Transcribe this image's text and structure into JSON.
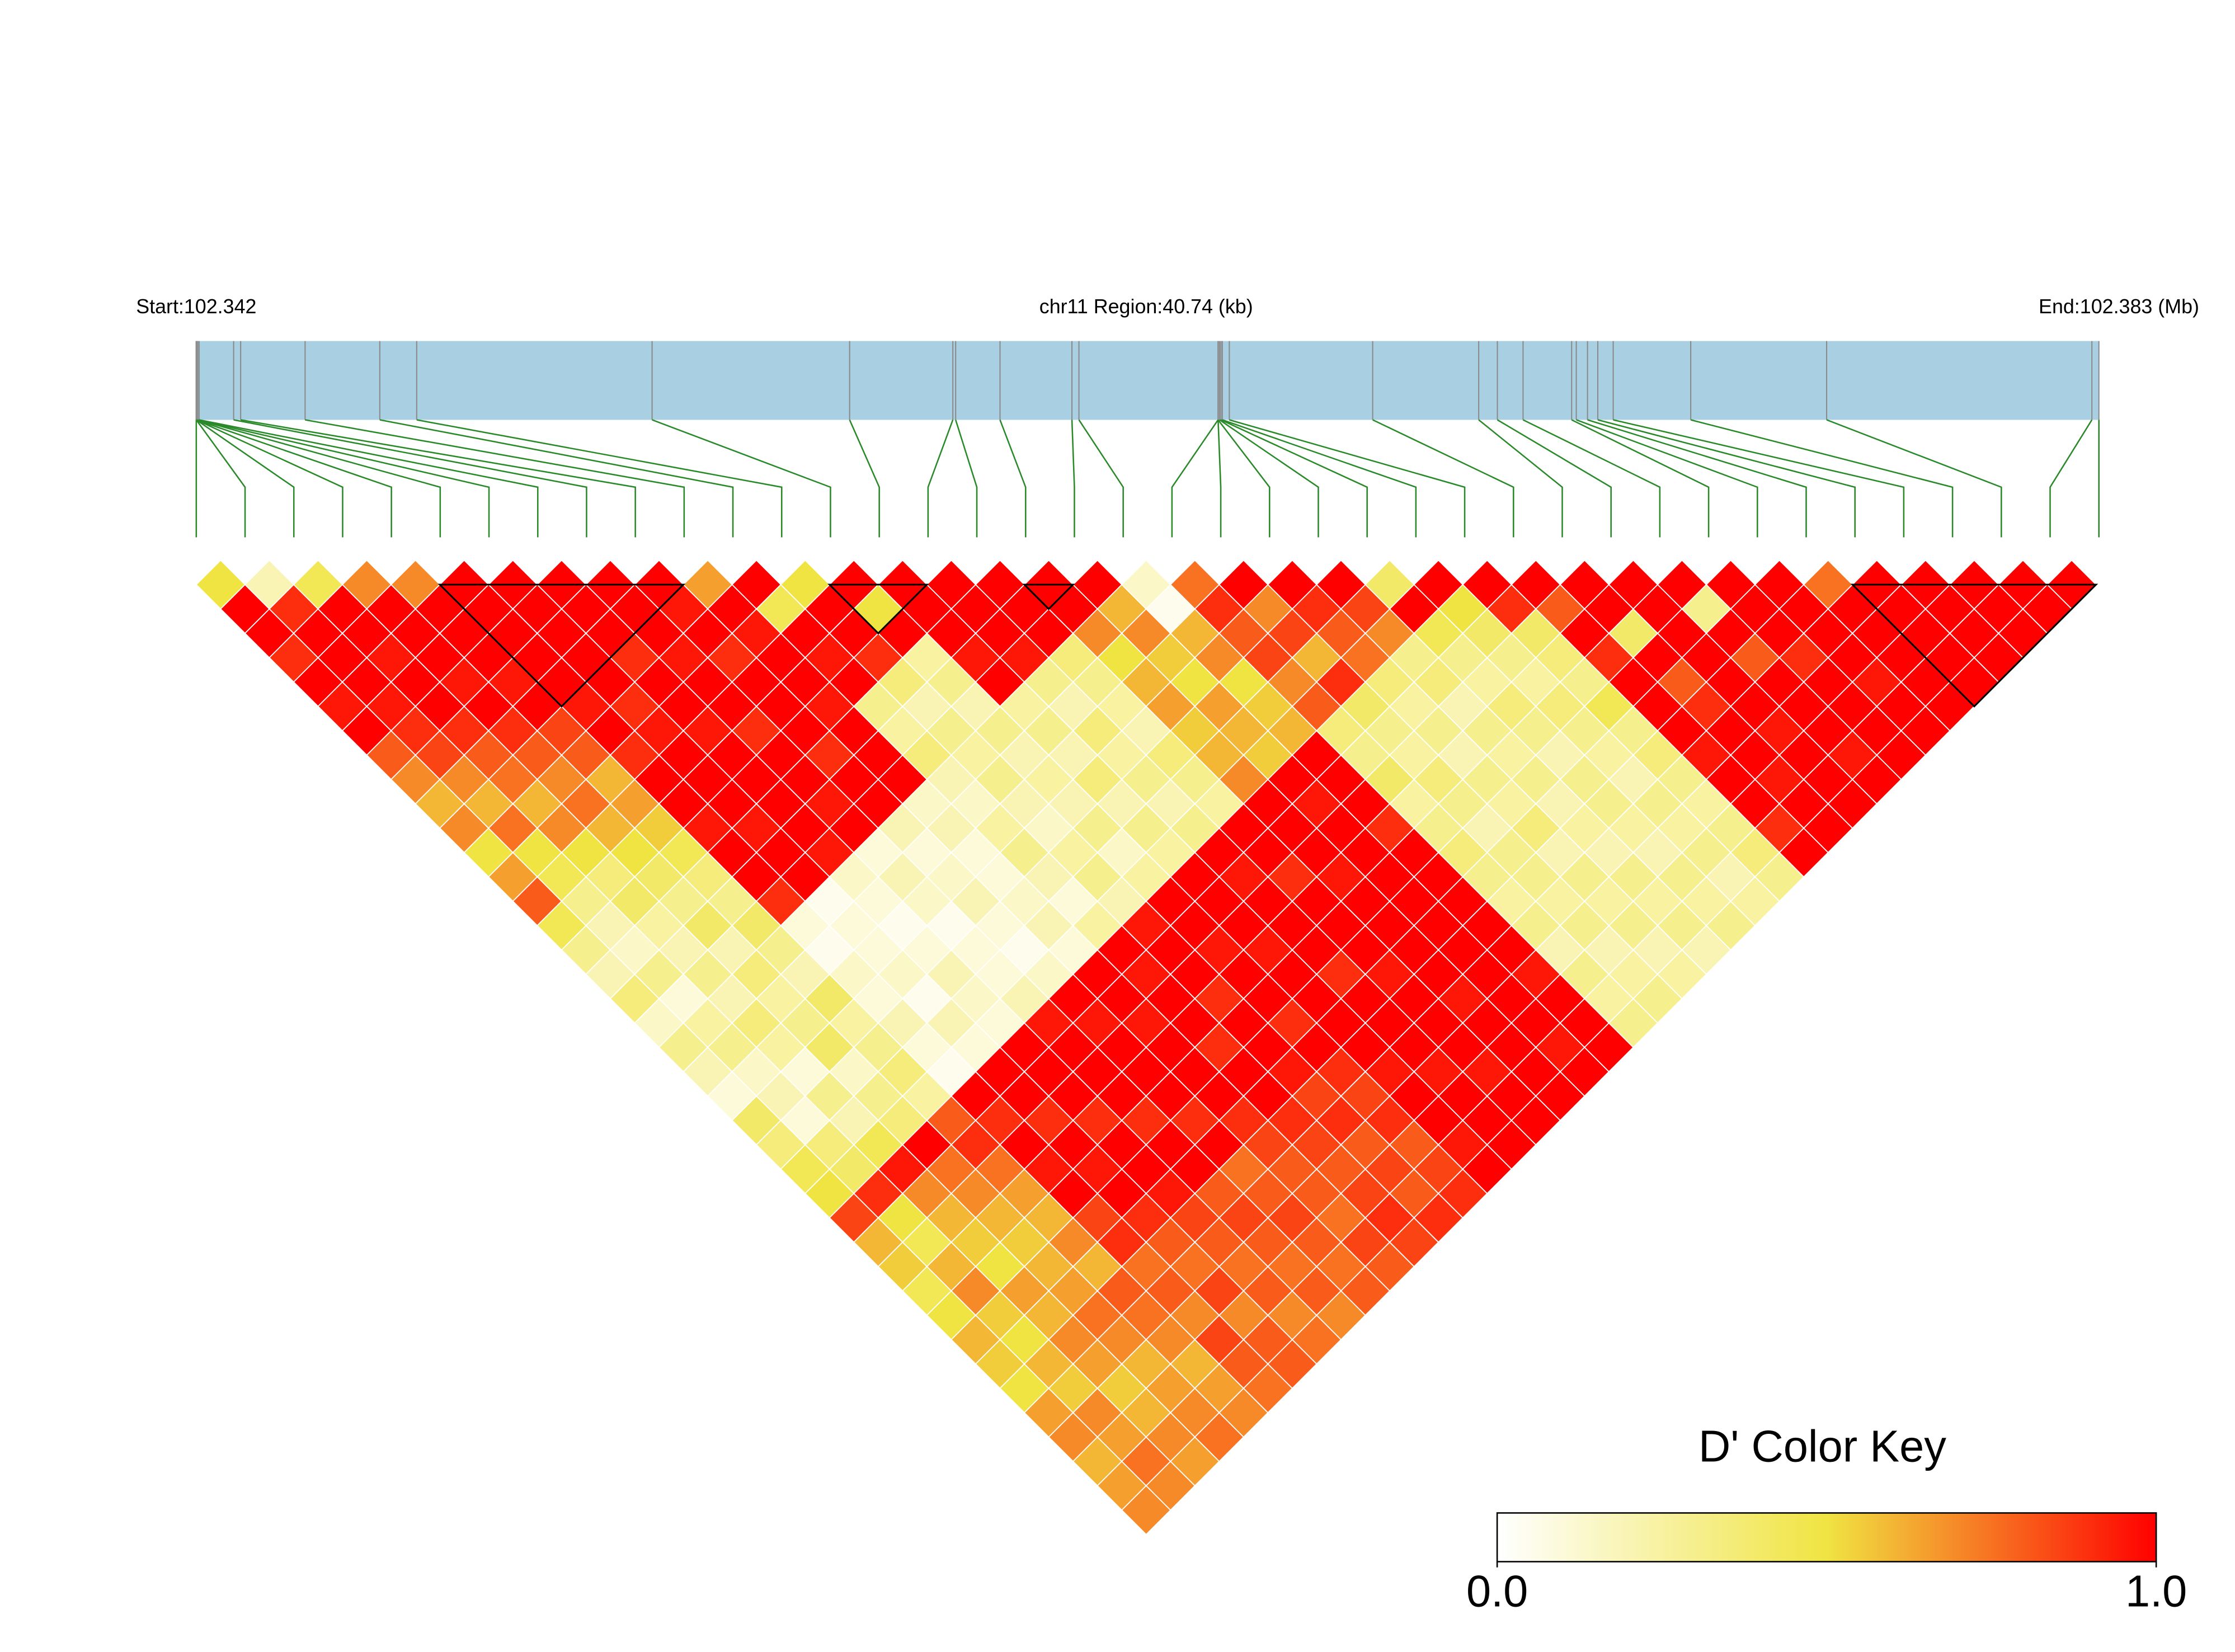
{
  "chart_data": {
    "type": "ld_heatmap",
    "start_label": "Start:102.342",
    "region_label": "chr11 Region:40.74 (kb)",
    "end_label": "End:102.383 (Mb)",
    "bar_color": "#a8cfe2",
    "snp_line_color": "#8a8a8a",
    "link_color": "#2a8a2a",
    "block_color": "#000000",
    "colors": [
      "#ffffff",
      "#f0e442",
      "#ff0000"
    ],
    "key": {
      "title": "D' Color Key",
      "lim": [
        0,
        1
      ],
      "ticks": [
        {
          "value": 0,
          "label": "0.0"
        },
        {
          "value": 1,
          "label": "1.0"
        }
      ]
    },
    "positions_kb": [
      0,
      0,
      0,
      0,
      0,
      0.03,
      0.03,
      0.06,
      0.8,
      0.95,
      2.33,
      3.93,
      4.72,
      9.76,
      13.99,
      16.2,
      16.26,
      17.21,
      18.75,
      18.9,
      21.88,
      21.88,
      21.88,
      21.91,
      21.94,
      21.97,
      22.12,
      25.19,
      27.46,
      27.86,
      28.41,
      29.45,
      29.55,
      29.79,
      30.01,
      30.34,
      32,
      34.91,
      40.59,
      40.74
    ],
    "blocks": [
      [
        5,
        10
      ],
      [
        13,
        15
      ],
      [
        17,
        18
      ],
      [
        34,
        39
      ]
    ],
    "dprime": [
      [
        0.5,
        1,
        1,
        0.9,
        1,
        0.95,
        1,
        0.8,
        0.7,
        0.6,
        0.7,
        0.5,
        0.65,
        0.8,
        0.45,
        0.3,
        0.2,
        0.35,
        0.15,
        0.3,
        0.2,
        0.1,
        0.4,
        0.35,
        0.45,
        0.5,
        0.85,
        0.6,
        0.55,
        0.45,
        0.5,
        0.6,
        0.55,
        0.5,
        0.65,
        0.7,
        0.6,
        0.65,
        0.7
      ],
      [
        0.2,
        0.9,
        1,
        1,
        1,
        0.95,
        0.9,
        0.85,
        0.7,
        0.6,
        0.75,
        0.5,
        0.45,
        0.3,
        0.2,
        0.15,
        0.3,
        0.1,
        0.25,
        0.3,
        0.15,
        0.2,
        0.1,
        0.35,
        0.4,
        0.9,
        0.5,
        0.45,
        0.6,
        0.7,
        0.55,
        0.5,
        0.6,
        0.55,
        0.7,
        0.65,
        0.75,
        0.7
      ],
      [
        0.45,
        1,
        1,
        0.95,
        1,
        1,
        0.9,
        0.8,
        0.75,
        0.6,
        0.7,
        0.5,
        0.35,
        0.4,
        0.25,
        0.2,
        0.3,
        0.2,
        0.35,
        0.25,
        0.1,
        0.3,
        0.2,
        0.45,
        0.95,
        0.7,
        0.6,
        0.55,
        0.5,
        0.65,
        0.6,
        0.7,
        0.65,
        0.55,
        0.6,
        0.7,
        0.65
      ],
      [
        0.7,
        1,
        1,
        1,
        0.95,
        1,
        0.9,
        0.8,
        0.7,
        0.75,
        0.6,
        0.5,
        0.4,
        0.3,
        0.4,
        0.2,
        0.35,
        0.25,
        0.3,
        0.4,
        0.15,
        0.3,
        0.35,
        1,
        0.75,
        0.7,
        0.6,
        0.55,
        0.6,
        0.65,
        0.75,
        0.7,
        0.6,
        0.65,
        0.7,
        0.75
      ],
      [
        0.7,
        1,
        1,
        1,
        0.95,
        1,
        0.85,
        0.8,
        0.6,
        0.65,
        0.55,
        0.45,
        0.35,
        0.3,
        0.4,
        0.3,
        0.2,
        0.4,
        0.25,
        0.3,
        0.35,
        0.25,
        0.8,
        0.9,
        0.75,
        0.65,
        0.6,
        0.7,
        0.6,
        0.8,
        0.75,
        0.7,
        0.6,
        0.65,
        0.7
      ],
      [
        1,
        1,
        1,
        1,
        1,
        0.95,
        1,
        0.9,
        1,
        1,
        0.95,
        1,
        1,
        0.9,
        0.1,
        0.05,
        0.15,
        0.1,
        0.2,
        0.1,
        0.05,
        1,
        0.9,
        1,
        0.95,
        1,
        0.85,
        0.9,
        0.75,
        0.8,
        0.7,
        0.85,
        0.8,
        0.75
      ],
      [
        1,
        1,
        1,
        1,
        1,
        0.9,
        0.95,
        1,
        1,
        1,
        0.95,
        1,
        1,
        0.05,
        0.1,
        0.1,
        0.15,
        0.05,
        0.2,
        0.1,
        1,
        1,
        0.9,
        1,
        0.95,
        1,
        0.9,
        0.8,
        0.75,
        0.85,
        0.7,
        0.8,
        0.8
      ],
      [
        1,
        1,
        1,
        0.9,
        1,
        1,
        0.95,
        1,
        1,
        1,
        1,
        0.95,
        0.15,
        0.1,
        0.05,
        0.1,
        0.2,
        0.15,
        0.1,
        1,
        1,
        1,
        0.9,
        1,
        1,
        0.95,
        0.85,
        0.8,
        0.75,
        0.8,
        0.7,
        0.75
      ],
      [
        1,
        1,
        1,
        0.95,
        1,
        1,
        0.9,
        1,
        1,
        0.95,
        1,
        0.1,
        0.2,
        0.15,
        0.05,
        0.1,
        0.1,
        0.2,
        0.95,
        1,
        1,
        1,
        0.9,
        1,
        1,
        0.8,
        0.85,
        0.8,
        0.75,
        0.8,
        0.7
      ],
      [
        1,
        0.95,
        1,
        0.9,
        1,
        1,
        1,
        0.9,
        1,
        1,
        0.2,
        0.1,
        0.15,
        0.2,
        0.1,
        0.05,
        0.15,
        1,
        0.95,
        1,
        1,
        1,
        0.9,
        1,
        0.75,
        0.8,
        0.85,
        0.8,
        0.75,
        0.8
      ],
      [
        0.65,
        1,
        0.95,
        1,
        1,
        0.95,
        1,
        1,
        1,
        0.15,
        0.2,
        0.1,
        0.1,
        0.15,
        0.2,
        0.1,
        1,
        1,
        0.95,
        1,
        1,
        1,
        0.9,
        0.85,
        0.8,
        0.8,
        0.75,
        0.85,
        0.8
      ],
      [
        1,
        0.45,
        1,
        0.95,
        1,
        0.3,
        0.25,
        0.35,
        0.2,
        0.15,
        0.25,
        0.3,
        0.2,
        0.1,
        0.25,
        1,
        0.95,
        1,
        1,
        0.9,
        1,
        1,
        0.9,
        0.85,
        0.8,
        0.85,
        0.9,
        0.85
      ],
      [
        0.5,
        1,
        1,
        0.9,
        0.35,
        0.2,
        0.3,
        0.25,
        0.3,
        0.2,
        0.15,
        0.25,
        0.3,
        0.2,
        0.95,
        1,
        1,
        0.9,
        1,
        1,
        0.95,
        0.85,
        0.9,
        0.8,
        0.85,
        0.8,
        0.9
      ],
      [
        1,
        0.5,
        1,
        0.25,
        0.3,
        0.2,
        0.3,
        0.2,
        0.25,
        0.2,
        0.3,
        0.15,
        0.25,
        1,
        1,
        0.95,
        1,
        1,
        0.9,
        1,
        0.9,
        0.85,
        0.9,
        0.8,
        0.85,
        0.9
      ],
      [
        1,
        1,
        1,
        0.95,
        1,
        0.25,
        0.3,
        0.2,
        0.35,
        0.2,
        0.3,
        0.25,
        1,
        1,
        1,
        0.95,
        1,
        1,
        1,
        1,
        0.95,
        1,
        1,
        0.95,
        1
      ],
      [
        1,
        1,
        1,
        0.95,
        0.3,
        0.2,
        0.35,
        0.25,
        0.3,
        0.2,
        0.3,
        1,
        0.95,
        1,
        1,
        1,
        0.9,
        1,
        1,
        1,
        0.95,
        1,
        1,
        1
      ],
      [
        1,
        1,
        1,
        0.35,
        0.3,
        0.25,
        0.2,
        0.35,
        0.3,
        0.25,
        1,
        1,
        0.9,
        1,
        1,
        1,
        0.95,
        1,
        1,
        1,
        0.95,
        1,
        1
      ],
      [
        1,
        1,
        0.7,
        0.5,
        0.6,
        0.65,
        0.55,
        0.6,
        0.7,
        1,
        1,
        1,
        0.95,
        1,
        1,
        1,
        1,
        0.95,
        1,
        1,
        1,
        1
      ],
      [
        1,
        0.6,
        0.7,
        0.55,
        0.5,
        0.65,
        0.6,
        0.55,
        1,
        0.95,
        1,
        1,
        1,
        1,
        1,
        1,
        1,
        1,
        1,
        0.95,
        1
      ],
      [
        0.15,
        0.05,
        0.6,
        0.7,
        0.5,
        0.55,
        0.6,
        1,
        1,
        1,
        0.9,
        1,
        1,
        1,
        1,
        1,
        0.95,
        1,
        1,
        1
      ],
      [
        0.75,
        0.9,
        0.8,
        0.85,
        0.7,
        0.8,
        0.35,
        0.3,
        0.4,
        0.25,
        0.3,
        0.35,
        0.3,
        0.25,
        0.3,
        0.2,
        0.3,
        0.25,
        0.3
      ],
      [
        1,
        0.7,
        0.85,
        0.6,
        0.9,
        0.4,
        0.3,
        0.25,
        0.35,
        0.3,
        0.2,
        0.3,
        0.3,
        0.25,
        0.3,
        0.2,
        0.25,
        0.3
      ],
      [
        1,
        0.9,
        0.8,
        0.75,
        0.35,
        0.25,
        0.3,
        0.2,
        0.3,
        0.25,
        0.35,
        0.2,
        0.3,
        0.25,
        0.3,
        0.2,
        0.25
      ],
      [
        1,
        0.85,
        0.7,
        0.3,
        0.35,
        0.2,
        0.3,
        0.25,
        0.3,
        0.2,
        0.25,
        0.2,
        0.3,
        0.25,
        0.3,
        0.2
      ],
      [
        0.4,
        1,
        0.45,
        0.3,
        0.25,
        0.35,
        0.3,
        0.2,
        0.3,
        0.3,
        0.25,
        0.2,
        0.3,
        0.25,
        0.3
      ],
      [
        1,
        0.5,
        0.4,
        0.3,
        0.25,
        0.35,
        0.3,
        0.25,
        0.2,
        0.3,
        0.25,
        0.3,
        0.2,
        0.25
      ],
      [
        1,
        0.9,
        0.4,
        0.35,
        0.3,
        0.45,
        0.3,
        0.35,
        0.3,
        0.25,
        0.3,
        0.35,
        0.3
      ],
      [
        1,
        0.8,
        1,
        0.9,
        1,
        1,
        1,
        0.95,
        1,
        1,
        0.9,
        1
      ],
      [
        1,
        1,
        0.4,
        1,
        0.8,
        0.9,
        1,
        1,
        0.95,
        1,
        1
      ],
      [
        1,
        1,
        1,
        1,
        1,
        1,
        0.95,
        1,
        1,
        1
      ],
      [
        1,
        0.3,
        1,
        0.8,
        1,
        1,
        1,
        0.95,
        1
      ],
      [
        1,
        1,
        1,
        0.9,
        1,
        1,
        1,
        1
      ],
      [
        1,
        1,
        1,
        1,
        0.95,
        1,
        1
      ],
      [
        0.75,
        1,
        1,
        1,
        1,
        1
      ],
      [
        1,
        1,
        1,
        1,
        1
      ],
      [
        1,
        1,
        1,
        1
      ],
      [
        1,
        1,
        1
      ],
      [
        1,
        1
      ],
      [
        1
      ]
    ]
  }
}
